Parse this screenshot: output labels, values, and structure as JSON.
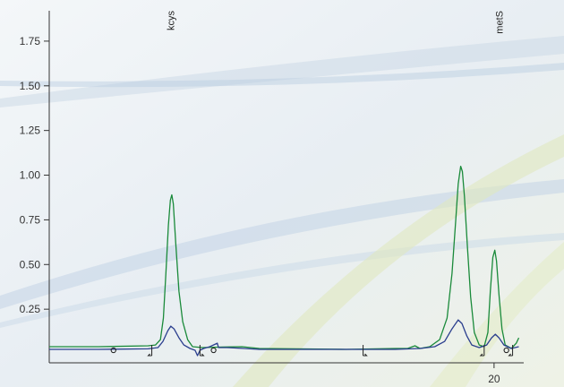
{
  "chart_data": {
    "type": "line",
    "title": "",
    "xlabel": "",
    "ylabel": "",
    "x_ticks": [
      20
    ],
    "y_ticks": [
      0.25,
      0.5,
      0.75,
      1.0,
      1.25,
      1.5,
      1.75
    ],
    "y_tick_labels": [
      "0.25",
      "0.50",
      "0.75",
      "1.00",
      "1.25",
      "1.50",
      "1.75"
    ],
    "x_tick_labels": [
      "20"
    ],
    "xlim": [
      2,
      21.2
    ],
    "ylim": [
      -0.05,
      1.92
    ],
    "grid": false,
    "colors": {
      "green_series": "#1a8a3a",
      "blue_series": "#2a3e8e",
      "axis": "#333333",
      "marker": "#222222"
    },
    "peak_labels": [
      {
        "text": "kcys",
        "x": 6.9
      },
      {
        "text": "metS",
        "x": 20.2
      }
    ],
    "series": [
      {
        "color": "#1a8a3a",
        "points": [
          [
            2.0,
            0.04
          ],
          [
            4.0,
            0.04
          ],
          [
            6.0,
            0.045
          ],
          [
            6.3,
            0.05
          ],
          [
            6.5,
            0.08
          ],
          [
            6.62,
            0.2
          ],
          [
            6.72,
            0.45
          ],
          [
            6.82,
            0.72
          ],
          [
            6.9,
            0.86
          ],
          [
            6.96,
            0.89
          ],
          [
            7.02,
            0.84
          ],
          [
            7.12,
            0.62
          ],
          [
            7.25,
            0.35
          ],
          [
            7.4,
            0.18
          ],
          [
            7.6,
            0.08
          ],
          [
            7.8,
            0.04
          ],
          [
            8.2,
            0.035
          ],
          [
            9.0,
            0.038
          ],
          [
            9.8,
            0.04
          ],
          [
            10.5,
            0.03
          ],
          [
            14.0,
            0.025
          ],
          [
            16.0,
            0.03
          ],
          [
            16.5,
            0.03
          ],
          [
            16.8,
            0.045
          ],
          [
            17.0,
            0.03
          ],
          [
            17.4,
            0.04
          ],
          [
            17.8,
            0.08
          ],
          [
            18.1,
            0.2
          ],
          [
            18.3,
            0.45
          ],
          [
            18.45,
            0.75
          ],
          [
            18.55,
            0.95
          ],
          [
            18.65,
            1.05
          ],
          [
            18.72,
            1.02
          ],
          [
            18.8,
            0.88
          ],
          [
            18.92,
            0.6
          ],
          [
            19.05,
            0.32
          ],
          [
            19.2,
            0.12
          ],
          [
            19.4,
            0.05
          ],
          [
            19.6,
            0.04
          ],
          [
            19.75,
            0.12
          ],
          [
            19.85,
            0.35
          ],
          [
            19.95,
            0.54
          ],
          [
            20.03,
            0.58
          ],
          [
            20.1,
            0.52
          ],
          [
            20.2,
            0.33
          ],
          [
            20.32,
            0.14
          ],
          [
            20.45,
            0.05
          ],
          [
            20.7,
            0.03
          ],
          [
            20.9,
            0.06
          ],
          [
            21.0,
            0.09
          ]
        ]
      },
      {
        "color": "#2a3e8e",
        "points": [
          [
            2.0,
            0.025
          ],
          [
            4.0,
            0.025
          ],
          [
            6.0,
            0.028
          ],
          [
            6.4,
            0.035
          ],
          [
            6.6,
            0.07
          ],
          [
            6.8,
            0.13
          ],
          [
            6.92,
            0.155
          ],
          [
            7.05,
            0.14
          ],
          [
            7.25,
            0.09
          ],
          [
            7.45,
            0.05
          ],
          [
            7.7,
            0.03
          ],
          [
            7.9,
            0.02
          ],
          [
            8.0,
            -0.01
          ],
          [
            8.1,
            0.02
          ],
          [
            8.25,
            0.03
          ],
          [
            8.5,
            0.04
          ],
          [
            8.8,
            0.06
          ],
          [
            8.85,
            0.035
          ],
          [
            9.2,
            0.035
          ],
          [
            9.9,
            0.03
          ],
          [
            10.5,
            0.025
          ],
          [
            14.0,
            0.025
          ],
          [
            16.0,
            0.025
          ],
          [
            17.0,
            0.03
          ],
          [
            17.6,
            0.04
          ],
          [
            18.0,
            0.07
          ],
          [
            18.3,
            0.14
          ],
          [
            18.55,
            0.19
          ],
          [
            18.7,
            0.17
          ],
          [
            18.9,
            0.1
          ],
          [
            19.1,
            0.05
          ],
          [
            19.4,
            0.035
          ],
          [
            19.7,
            0.05
          ],
          [
            19.9,
            0.09
          ],
          [
            20.05,
            0.11
          ],
          [
            20.2,
            0.09
          ],
          [
            20.4,
            0.05
          ],
          [
            20.7,
            0.03
          ],
          [
            21.0,
            0.04
          ]
        ]
      }
    ],
    "integration_markers": [
      4.6,
      6.15,
      8.1,
      8.65,
      14.7,
      19.6,
      20.5,
      20.75
    ]
  }
}
